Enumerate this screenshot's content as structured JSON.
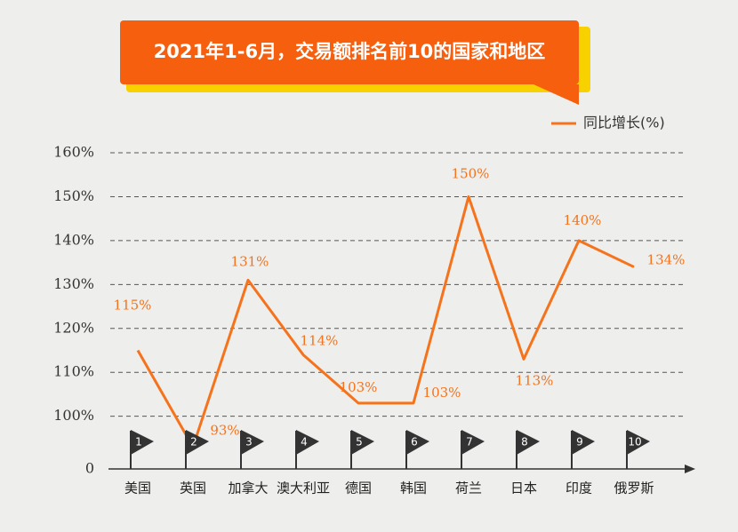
{
  "chart_data": {
    "type": "line",
    "title": "2021年1-6月，交易额排名前10的国家和地区",
    "categories": [
      "美国",
      "英国",
      "加拿大",
      "澳大利亚",
      "德国",
      "韩国",
      "荷兰",
      "日本",
      "印度",
      "俄罗斯"
    ],
    "flag_labels": [
      "1",
      "2",
      "3",
      "4",
      "5",
      "6",
      "7",
      "8",
      "9",
      "10"
    ],
    "series": [
      {
        "name": "同比增长(%)",
        "color": "#f5731c",
        "values": [
          115,
          93,
          131,
          114,
          103,
          103,
          150,
          113,
          140,
          134
        ],
        "value_labels": [
          "115%",
          "93%",
          "131%",
          "114%",
          "103%",
          "103%",
          "150%",
          "113%",
          "140%",
          "134%"
        ]
      }
    ],
    "ylim": [
      88,
      160
    ],
    "yticks": [
      0,
      {
        "value": 100,
        "label": "100%"
      },
      {
        "value": 110,
        "label": "110%"
      },
      {
        "value": 120,
        "label": "120%"
      },
      {
        "value": 130,
        "label": "130%"
      },
      {
        "value": 140,
        "label": "140%"
      },
      {
        "value": 150,
        "label": "150%"
      },
      {
        "value": 160,
        "label": "160%"
      }
    ],
    "grid": true,
    "legend": "top-right"
  }
}
